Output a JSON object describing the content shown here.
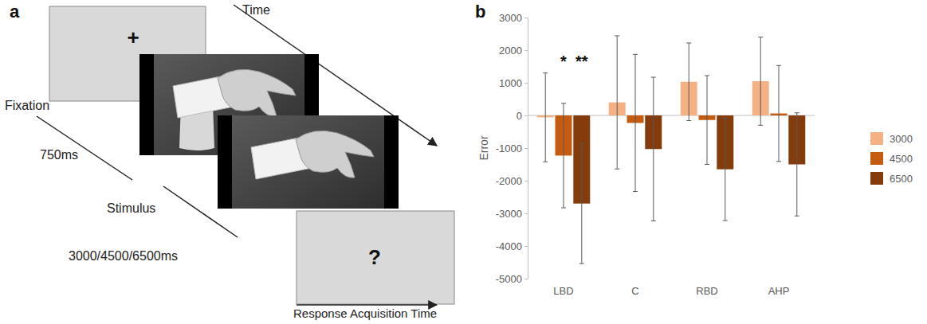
{
  "panels": [
    "a",
    "b"
  ],
  "diagram": {
    "time_label": "Time",
    "fixation_label": "Fixation",
    "fixation_symbol": "+",
    "fixation_duration": "750ms",
    "stimulus_label": "Stimulus",
    "stimulus_duration": "3000/4500/6500ms",
    "response_symbol": "?",
    "response_label": "Response Acquisition Time"
  },
  "chart_data": {
    "type": "bar",
    "y_label": "Error",
    "categories": [
      "LBD",
      "C",
      "RBD",
      "AHP"
    ],
    "series": [
      {
        "name": "3000",
        "color": "#f4b183",
        "values": [
          -60,
          400,
          1030,
          1050
        ],
        "errors": [
          1360,
          2040,
          1190,
          1350
        ]
      },
      {
        "name": "4500",
        "color": "#c55a11",
        "values": [
          -1230,
          -230,
          -140,
          60
        ],
        "errors": [
          1600,
          2100,
          1360,
          1470
        ]
      },
      {
        "name": "6500",
        "color": "#843c0c",
        "values": [
          -2700,
          -1030,
          -1650,
          -1500
        ],
        "errors": [
          1840,
          2200,
          1570,
          1580
        ]
      }
    ],
    "ylim": [
      -5000,
      3000
    ],
    "yticks": [
      -5000,
      -4000,
      -3000,
      -2000,
      -1000,
      0,
      1000,
      2000,
      3000
    ],
    "grid": false,
    "legend": "right",
    "annotations": [
      {
        "text": "*",
        "category": 0,
        "series": 1
      },
      {
        "text": "**",
        "category": 0,
        "series": 2
      }
    ]
  }
}
